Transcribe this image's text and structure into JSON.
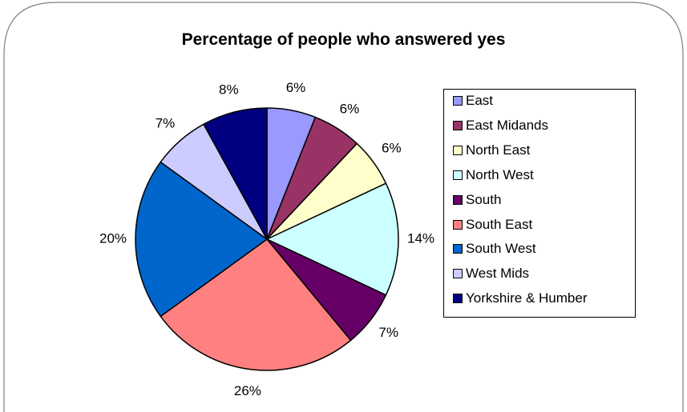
{
  "chart_data": {
    "type": "pie",
    "title": "Percentage of people who answered yes",
    "categories": [
      "East",
      "East Midands",
      "North East",
      "North West",
      "South",
      "South East",
      "South West",
      "West Mids",
      "Yorkshire & Humber"
    ],
    "values": [
      6,
      6,
      6,
      14,
      7,
      26,
      20,
      7,
      8
    ],
    "labels": [
      "6%",
      "6%",
      "6%",
      "14%",
      "7%",
      "26%",
      "20%",
      "7%",
      "8%"
    ],
    "colors": [
      "#9999ff",
      "#993366",
      "#ffffcc",
      "#ccffff",
      "#660066",
      "#ff8080",
      "#0066cc",
      "#ccccff",
      "#000080"
    ],
    "start_angle": "12 o'clock",
    "direction": "clockwise",
    "legend_position": "right"
  }
}
